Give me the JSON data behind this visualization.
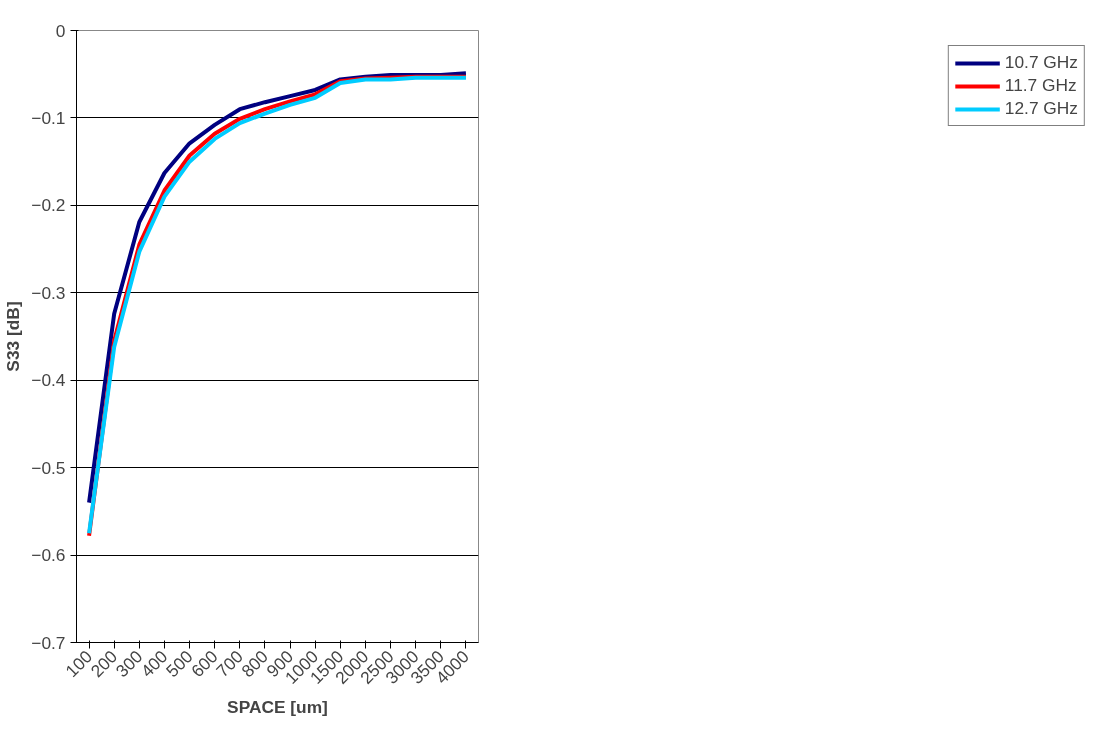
{
  "chart_data": {
    "type": "line",
    "xlabel": "SPACE [um]",
    "ylabel": "S33 [dB]",
    "categories": [
      "100",
      "200",
      "300",
      "400",
      "500",
      "600",
      "700",
      "800",
      "900",
      "1000",
      "1500",
      "2000",
      "2500",
      "3000",
      "3500",
      "4000"
    ],
    "series": [
      {
        "name": "10.7 GHz",
        "color": "#000080",
        "values": [
          -0.54,
          -0.324,
          -0.219,
          -0.163,
          -0.129,
          -0.108,
          -0.09,
          -0.082,
          -0.075,
          -0.068,
          -0.056,
          -0.053,
          -0.051,
          -0.051,
          -0.051,
          -0.049
        ]
      },
      {
        "name": "11.7 GHz",
        "color": "#ff0000",
        "values": [
          -0.578,
          -0.355,
          -0.245,
          -0.183,
          -0.143,
          -0.118,
          -0.101,
          -0.09,
          -0.081,
          -0.073,
          -0.058,
          -0.055,
          -0.054,
          -0.053,
          -0.053,
          -0.053
        ]
      },
      {
        "name": "12.7 GHz",
        "color": "#00ccff",
        "values": [
          -0.575,
          -0.362,
          -0.253,
          -0.19,
          -0.15,
          -0.124,
          -0.106,
          -0.095,
          -0.085,
          -0.077,
          -0.06,
          -0.056,
          -0.056,
          -0.054,
          -0.054,
          -0.054
        ]
      }
    ],
    "ylim": [
      -0.7,
      0
    ],
    "yticks": [
      -0.7,
      -0.6,
      -0.5,
      -0.4,
      -0.3,
      -0.2,
      -0.1,
      0
    ],
    "grid": "y",
    "legend": "right",
    "marker": "none",
    "line_style": "solid"
  }
}
